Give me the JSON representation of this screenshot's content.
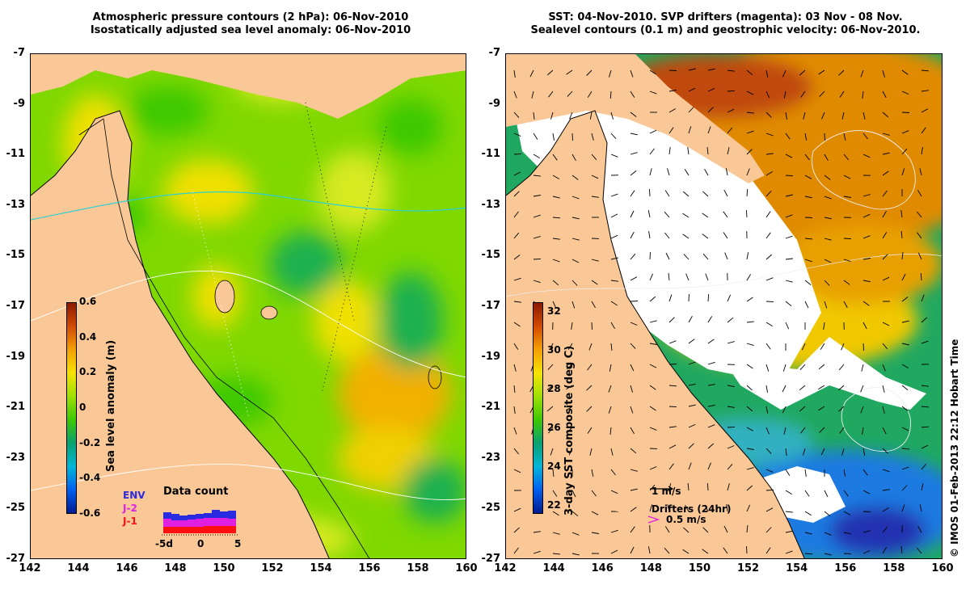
{
  "left_panel": {
    "title_line1": "Atmospheric pressure contours (2 hPa): 06-Nov-2010",
    "title_line2": "Isostatically adjusted sea level anomaly: 06-Nov-2010",
    "colorbar": {
      "label": "Sea level anomaly (m)",
      "ticks": [
        "0.6",
        "0.4",
        "0.2",
        "0",
        "-0.2",
        "-0.4",
        "-0.6"
      ],
      "colors": [
        "#8b1a00",
        "#d24a00",
        "#f5a000",
        "#f5e300",
        "#9fe000",
        "#3ec800",
        "#08a070",
        "#00b6d8",
        "#0060f0",
        "#001a90"
      ]
    },
    "data_count": {
      "title": "Data count",
      "missions": [
        "ENV",
        "J-2",
        "J-1"
      ],
      "mission_colors": [
        "#2a2ae0",
        "#e020e0",
        "#ff1010"
      ],
      "xticks": [
        "-5d",
        "0",
        "5"
      ]
    }
  },
  "right_panel": {
    "title_line1": "SST: 04-Nov-2010. SVP drifters (magenta): 03 Nov - 08 Nov.",
    "title_line2": "Sealevel contours (0.1 m) and geostrophic velocity: 06-Nov-2010.",
    "colorbar": {
      "label": "3-day SST composite (deg C)",
      "ticks": [
        "32",
        "30",
        "28",
        "26",
        "24",
        "22"
      ],
      "colors": [
        "#8b1a00",
        "#d24a00",
        "#f5a000",
        "#f5e300",
        "#9fe000",
        "#3ec800",
        "#08a070",
        "#00b6d8",
        "#0060f0",
        "#001a90"
      ]
    },
    "scale_arrow_label": "1 m/s",
    "drifters_label": "Drifters (24hr)",
    "drifters_speed_label": "0.5 m/s"
  },
  "axes": {
    "x_ticks": [
      "142",
      "144",
      "146",
      "148",
      "150",
      "152",
      "154",
      "156",
      "158",
      "160"
    ],
    "y_ticks": [
      "-7",
      "-9",
      "-11",
      "-13",
      "-15",
      "-17",
      "-19",
      "-21",
      "-23",
      "-25",
      "-27"
    ]
  },
  "colors": {
    "land": "#fac896",
    "sla_green": "#7fd800",
    "sla_yellow": "#f0e000",
    "sla_teal": "#10b050",
    "sst_orange": "#e08a00",
    "sst_cloud": "#ffffff",
    "sst_green": "#20a860",
    "sst_blue": "#1a7ae0"
  },
  "copyright": "© IMOS 01-Feb-2013 22:12 Hobart Time"
}
